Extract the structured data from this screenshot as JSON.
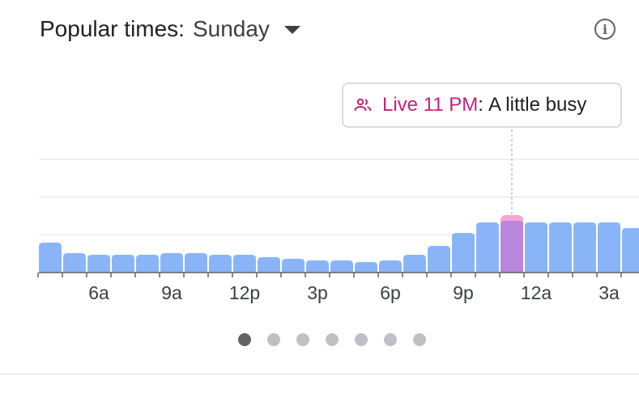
{
  "header": {
    "title": "Popular times:",
    "day": "Sunday"
  },
  "tooltip": {
    "live": "Live 11 PM",
    "separator": ":",
    "status": "A little busy"
  },
  "colors": {
    "bar": "#8ab4f8",
    "live_bar": "#bb86de",
    "live_top": "#f3a6cf",
    "live_text": "#c5227c",
    "grid": "#e8eaed",
    "axis": "#5f6368"
  },
  "chart_data": {
    "type": "bar",
    "hours": [
      "4a",
      "5a",
      "6a",
      "7a",
      "8a",
      "9a",
      "10a",
      "11a",
      "12p",
      "1p",
      "2p",
      "3p",
      "4p",
      "5p",
      "6p",
      "7p",
      "8p",
      "9p",
      "10p",
      "11p",
      "12a",
      "1a",
      "2a",
      "3a",
      "4a"
    ],
    "values": [
      37,
      24,
      22,
      22,
      22,
      24,
      24,
      22,
      22,
      19,
      17,
      15,
      15,
      13,
      15,
      22,
      33,
      49,
      62,
      64,
      62,
      62,
      62,
      62,
      55
    ],
    "live_index": 19,
    "live_value": 71,
    "tick_labels": [
      {
        "index": 2,
        "label": "6a"
      },
      {
        "index": 5,
        "label": "9a"
      },
      {
        "index": 8,
        "label": "12p"
      },
      {
        "index": 11,
        "label": "3p"
      },
      {
        "index": 14,
        "label": "6p"
      },
      {
        "index": 17,
        "label": "9p"
      },
      {
        "index": 20,
        "label": "12a"
      },
      {
        "index": 23,
        "label": "3a"
      }
    ],
    "ylim": [
      0,
      140
    ]
  },
  "pagination": {
    "count": 7,
    "active": 0
  }
}
